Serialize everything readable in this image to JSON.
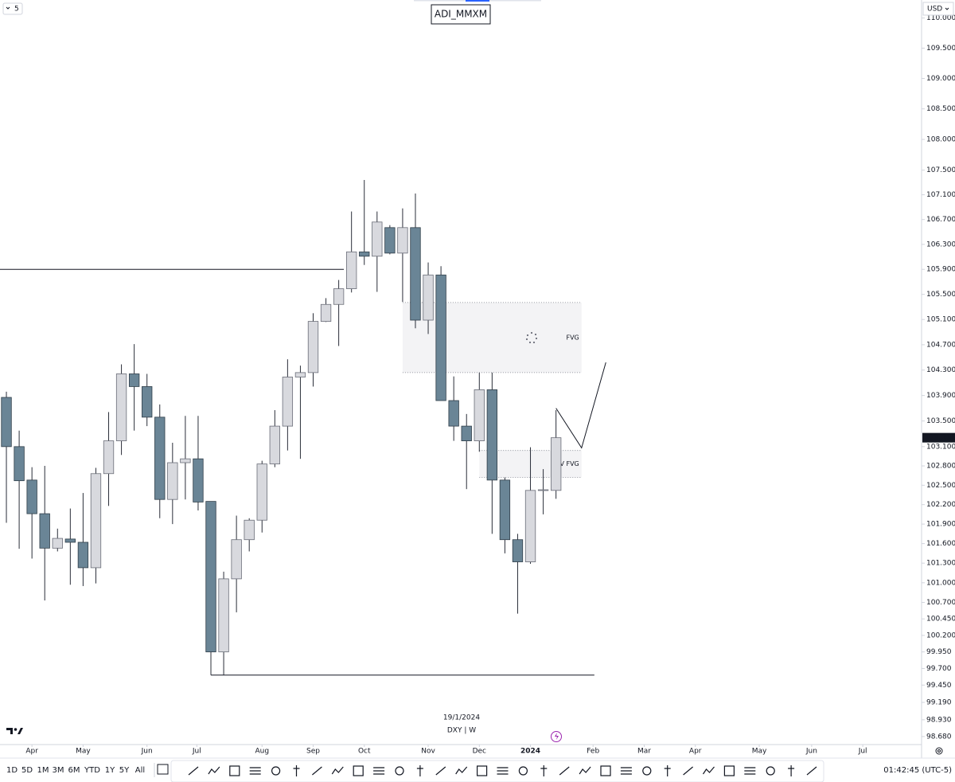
{
  "chart_data": {
    "type": "candlestick",
    "title": "ADI_MMXM",
    "log": true,
    "x": [
      0,
      1,
      2,
      3,
      4,
      5,
      6,
      7,
      8,
      9,
      10,
      11,
      12,
      13,
      14,
      15,
      16,
      17,
      18,
      19,
      20,
      21,
      22,
      23,
      24,
      25,
      26,
      27,
      28,
      29,
      30,
      31,
      32,
      33,
      34,
      35,
      36,
      37,
      38,
      39,
      40,
      41,
      42,
      43
    ],
    "open": [
      103.87,
      103.1,
      102.58,
      102.06,
      101.53,
      101.67,
      101.62,
      101.23,
      102.68,
      103.19,
      104.24,
      104.04,
      103.56,
      102.28,
      102.85,
      102.91,
      102.25,
      99.95,
      101.06,
      101.66,
      101.96,
      102.83,
      103.42,
      104.19,
      104.26,
      105.07,
      105.34,
      105.59,
      106.18,
      106.11,
      106.57,
      106.16,
      106.57,
      105.09,
      105.81,
      103.82,
      103.42,
      103.19,
      103.99,
      102.58,
      101.66,
      101.32,
      102.42,
      102.42
    ],
    "high": [
      103.96,
      103.35,
      102.78,
      102.8,
      101.83,
      102.14,
      102.38,
      102.77,
      103.64,
      104.39,
      104.71,
      104.24,
      103.76,
      103.16,
      103.58,
      103.58,
      102.25,
      101.17,
      102.03,
      101.99,
      102.88,
      103.67,
      104.47,
      104.37,
      105.2,
      105.44,
      105.73,
      106.83,
      107.34,
      106.83,
      106.61,
      106.88,
      107.12,
      106.01,
      105.95,
      104.2,
      103.61,
      104.26,
      104.26,
      102.62,
      101.75,
      103.09,
      102.75,
      103.67
    ],
    "low": [
      101.92,
      101.52,
      101.37,
      100.73,
      101.48,
      100.97,
      100.95,
      100.99,
      102.18,
      102.97,
      103.35,
      103.42,
      101.99,
      101.9,
      102.28,
      102.11,
      99.6,
      99.6,
      100.55,
      101.48,
      101.77,
      102.78,
      103.04,
      102.91,
      104.04,
      105.06,
      104.68,
      105.53,
      105.97,
      105.54,
      106.14,
      105.38,
      104.96,
      104.87,
      103.82,
      103.19,
      102.44,
      103.02,
      101.75,
      101.45,
      100.53,
      101.29,
      102.05,
      102.29
    ],
    "close": [
      103.1,
      102.57,
      102.06,
      101.53,
      101.68,
      101.62,
      101.23,
      102.68,
      103.19,
      104.24,
      104.04,
      103.56,
      102.28,
      102.85,
      102.91,
      102.24,
      99.95,
      101.06,
      101.66,
      101.96,
      102.83,
      103.42,
      104.19,
      104.26,
      105.07,
      105.34,
      105.59,
      106.18,
      106.11,
      106.66,
      106.16,
      106.57,
      105.09,
      105.81,
      103.82,
      103.42,
      103.19,
      103.99,
      102.58,
      101.66,
      101.32,
      102.42,
      102.43,
      103.239
    ],
    "up_color": "#d8d9de",
    "down_color": "#6a8596",
    "ylim": [
      98.56,
      110.3
    ],
    "yticks": [
      {
        "value": 110,
        "label": "110.000"
      },
      {
        "value": 109.5,
        "label": "109.500"
      },
      {
        "value": 109,
        "label": "109.000"
      },
      {
        "value": 108.5,
        "label": "108.500"
      },
      {
        "value": 108,
        "label": "108.000"
      },
      {
        "value": 107.5,
        "label": "107.500"
      },
      {
        "value": 107.1,
        "label": "107.100"
      },
      {
        "value": 106.7,
        "label": "106.700"
      },
      {
        "value": 106.3,
        "label": "106.300"
      },
      {
        "value": 105.9,
        "label": "105.900"
      },
      {
        "value": 105.5,
        "label": "105.500"
      },
      {
        "value": 105.1,
        "label": "105.100"
      },
      {
        "value": 104.7,
        "label": "104.700"
      },
      {
        "value": 104.3,
        "label": "104.300"
      },
      {
        "value": 103.9,
        "label": "103.900"
      },
      {
        "value": 103.5,
        "label": "103.500"
      },
      {
        "value": 103.1,
        "label": "103.100"
      },
      {
        "value": 102.8,
        "label": "102.800"
      },
      {
        "value": 102.5,
        "label": "102.500"
      },
      {
        "value": 102.2,
        "label": "102.200"
      },
      {
        "value": 101.9,
        "label": "101.900"
      },
      {
        "value": 101.6,
        "label": "101.600"
      },
      {
        "value": 101.3,
        "label": "101.300"
      },
      {
        "value": 101,
        "label": "101.000"
      },
      {
        "value": 100.7,
        "label": "100.700"
      },
      {
        "value": 100.45,
        "label": "100.450"
      },
      {
        "value": 100.2,
        "label": "100.200"
      },
      {
        "value": 99.95,
        "label": "99.950"
      },
      {
        "value": 99.7,
        "label": "99.700"
      },
      {
        "value": 99.45,
        "label": "99.450"
      },
      {
        "value": 99.19,
        "label": "99.190"
      },
      {
        "value": 98.93,
        "label": "98.930"
      },
      {
        "value": 98.68,
        "label": "98.680"
      }
    ],
    "xlim": [
      -0.5,
      71.6
    ],
    "xticks": [
      {
        "value": 2,
        "label": "Apr"
      },
      {
        "value": 6,
        "label": "May"
      },
      {
        "value": 11,
        "label": "Jun"
      },
      {
        "value": 14.9,
        "label": "Jul"
      },
      {
        "value": 20,
        "label": "Aug"
      },
      {
        "value": 24,
        "label": "Sep"
      },
      {
        "value": 28,
        "label": "Oct"
      },
      {
        "value": 33,
        "label": "Nov"
      },
      {
        "value": 37,
        "label": "Dec"
      },
      {
        "value": 41,
        "label": "2024"
      },
      {
        "value": 45.9,
        "label": "Feb"
      },
      {
        "value": 49.9,
        "label": "Mar"
      },
      {
        "value": 53.9,
        "label": "Apr"
      },
      {
        "value": 58.9,
        "label": "May"
      },
      {
        "value": 63,
        "label": "Jun"
      },
      {
        "value": 67,
        "label": "Jul"
      }
    ],
    "last_price": 103.239,
    "zones": [
      {
        "label": "FVG",
        "x": [
          31,
          45
        ],
        "y": [
          104.26,
          105.37
        ]
      },
      {
        "label": "INV FVG",
        "x": [
          37,
          45
        ],
        "y": [
          102.62,
          103.04
        ]
      }
    ],
    "levels": [
      {
        "y": 105.9,
        "x": [
          -0.5,
          26.4
        ]
      },
      {
        "y": 99.6,
        "x": [
          16,
          46
        ]
      }
    ],
    "projection": {
      "x": [
        43,
        45,
        46.9
      ],
      "y": [
        103.7,
        103.08,
        104.42
      ]
    }
  },
  "ui": {
    "interval": "5",
    "currency": "USD",
    "date": "19/1/2024",
    "symbol_info": "DXY | W",
    "ranges": [
      "1D",
      "5D",
      "1M",
      "3M",
      "6M",
      "YTD",
      "1Y",
      "5Y",
      "All"
    ],
    "clock": "01:42:45 (UTC-5)"
  }
}
